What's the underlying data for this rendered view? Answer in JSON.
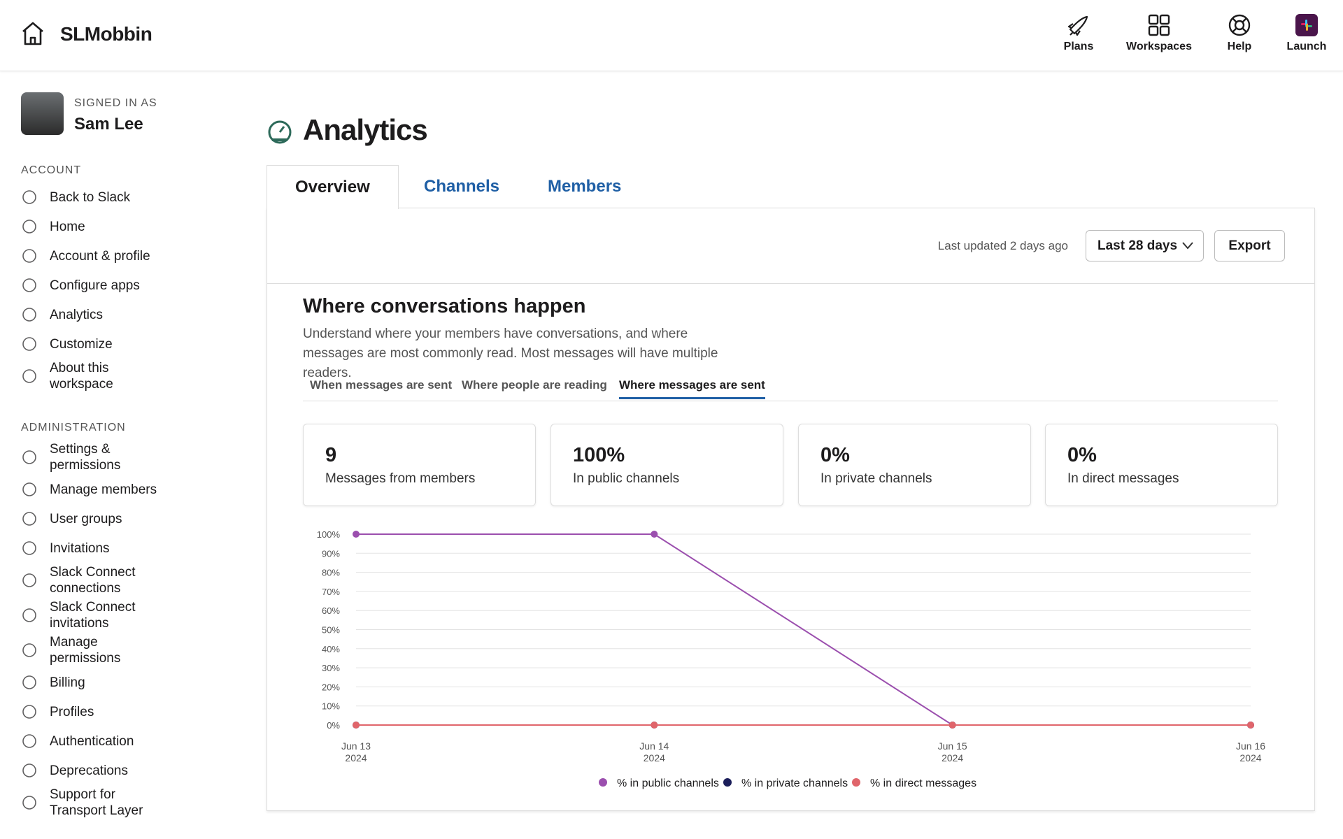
{
  "header": {
    "brand": "SLMobbin",
    "nav": [
      "Plans",
      "Workspaces",
      "Help",
      "Launch"
    ]
  },
  "sidebar": {
    "signed_in_label": "SIGNED IN AS",
    "user": "Sam Lee",
    "sections": [
      {
        "title": "ACCOUNT",
        "items": [
          "Back to Slack",
          "Home",
          "Account & profile",
          "Configure apps",
          "Analytics",
          "Customize",
          "About this workspace"
        ]
      },
      {
        "title": "ADMINISTRATION",
        "items": [
          "Settings & permissions",
          "Manage members",
          "User groups",
          "Invitations",
          "Slack Connect connections",
          "Slack Connect invitations",
          "Manage permissions",
          "Billing",
          "Profiles",
          "Authentication",
          "Deprecations",
          "Support for Transport Layer"
        ]
      }
    ]
  },
  "page": {
    "title": "Analytics",
    "tabs": [
      "Overview",
      "Channels",
      "Members"
    ],
    "last_updated": "Last updated 2 days ago",
    "range": "Last 28 days",
    "export": "Export"
  },
  "section": {
    "title": "Where conversations happen",
    "description": "Understand where your members have conversations, and where messages are most commonly read. Most messages will have multiple readers.",
    "subtabs": [
      "When messages are sent",
      "Where people are reading",
      "Where messages are sent"
    ],
    "cards": [
      {
        "value": "9",
        "label": "Messages from members"
      },
      {
        "value": "100%",
        "label": "In public channels"
      },
      {
        "value": "0%",
        "label": "In private channels"
      },
      {
        "value": "0%",
        "label": "In direct messages"
      }
    ]
  },
  "chart": {
    "type": "line",
    "x": [
      {
        "day": "Jun 13",
        "year": "2024"
      },
      {
        "day": "Jun 14",
        "year": "2024"
      },
      {
        "day": "Jun 15",
        "year": "2024"
      },
      {
        "day": "Jun 16",
        "year": "2024"
      }
    ],
    "series": [
      {
        "name": "% in public channels",
        "color": "#9b4fae",
        "values": [
          100,
          100,
          0,
          0
        ]
      },
      {
        "name": "% in private channels",
        "color": "#1b1e5a",
        "values": [
          0,
          0,
          0,
          0
        ]
      },
      {
        "name": "% in direct messages",
        "color": "#e0656b",
        "values": [
          0,
          0,
          0,
          0
        ]
      }
    ],
    "ylim": [
      0,
      100
    ],
    "yticks": [
      {
        "value": 0,
        "label": "0%"
      },
      {
        "value": 10,
        "label": "10%"
      },
      {
        "value": 20,
        "label": "20%"
      },
      {
        "value": 30,
        "label": "30%"
      },
      {
        "value": 40,
        "label": "40%"
      },
      {
        "value": 50,
        "label": "50%"
      },
      {
        "value": 60,
        "label": "60%"
      },
      {
        "value": 70,
        "label": "70%"
      },
      {
        "value": 80,
        "label": "80%"
      },
      {
        "value": 90,
        "label": "90%"
      },
      {
        "value": 100,
        "label": "100%"
      }
    ],
    "grid": true
  }
}
